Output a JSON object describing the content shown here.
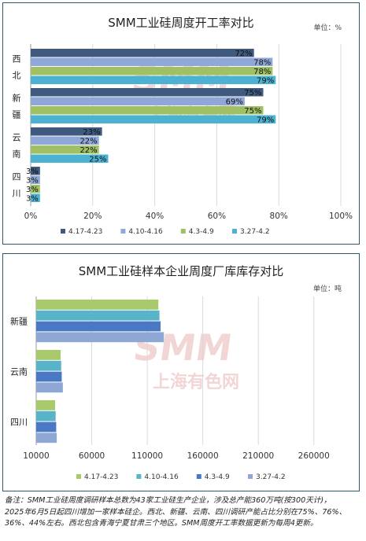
{
  "chart_data": [
    {
      "type": "bar",
      "orientation": "horizontal",
      "title": "SMM工业硅周度开工率对比",
      "unit_label": "单位：%",
      "categories": [
        "西北",
        "新疆",
        "云南",
        "四川"
      ],
      "series": [
        {
          "name": "4.17-4.23",
          "color": "#3f5a7e",
          "values": [
            72,
            75,
            23,
            3
          ],
          "labels": [
            "72%",
            "75%",
            "23%",
            "3%"
          ]
        },
        {
          "name": "4.10-4.16",
          "color": "#8fa8d8",
          "values": [
            78,
            69,
            22,
            3
          ],
          "labels": [
            "78%",
            "69%",
            "22%",
            "3%"
          ]
        },
        {
          "name": "4.3-4.9",
          "color": "#9fc163",
          "values": [
            78,
            75,
            22,
            3
          ],
          "labels": [
            "78%",
            "75%",
            "22%",
            "3%"
          ]
        },
        {
          "name": "3.27-4.2",
          "color": "#4bb3d1",
          "values": [
            79,
            79,
            25,
            3
          ],
          "labels": [
            "79%",
            "79%",
            "25%",
            "3%"
          ]
        }
      ],
      "xlim": [
        0,
        100
      ],
      "ticks": [
        0,
        20,
        40,
        60,
        80,
        100
      ],
      "tick_labels": [
        "0%",
        "20%",
        "40%",
        "60%",
        "80%",
        "100%"
      ],
      "grid": true,
      "legend": "bottom"
    },
    {
      "type": "bar",
      "orientation": "horizontal",
      "title": "SMM工业硅样本企业周度厂库库存对比",
      "unit_label": "单位：吨",
      "categories": [
        "新疆",
        "云南",
        "四川"
      ],
      "series": [
        {
          "name": "4.17-4.23",
          "color": "#a8c96c",
          "values": [
            120000,
            32000,
            27000
          ]
        },
        {
          "name": "4.10-4.16",
          "color": "#5ab4c9",
          "values": [
            121000,
            32500,
            27500
          ]
        },
        {
          "name": "4.3-4.9",
          "color": "#4a78c3",
          "values": [
            122000,
            33000,
            28000
          ]
        },
        {
          "name": "3.27-4.2",
          "color": "#8ea7d4",
          "values": [
            125000,
            34000,
            28500
          ]
        }
      ],
      "xlim": [
        10000,
        285000
      ],
      "ticks": [
        10000,
        60000,
        110000,
        160000,
        210000,
        260000
      ],
      "tick_labels": [
        "10000",
        "60000",
        "110000",
        "160000",
        "210000",
        "260000"
      ],
      "grid": true,
      "legend": "bottom"
    }
  ],
  "footnote": {
    "line1": "备注：SMM工业硅周度调研样本总数为43家工业硅生产企业，涉及总产能360万吨(按300天计)，",
    "line2": "2025年6月5日起四川增加一家样本硅企。西北、新疆、云南、四川调研产能占比分别在75%、76%、",
    "line3": "36%、44%左右。西北包含青海宁夏甘肃三个地区。SMM周度开工率数据更新为每周4更新。"
  },
  "watermark": {
    "line1": "SMM",
    "line2": "上海有色网",
    "color": "#e8b4b4"
  }
}
